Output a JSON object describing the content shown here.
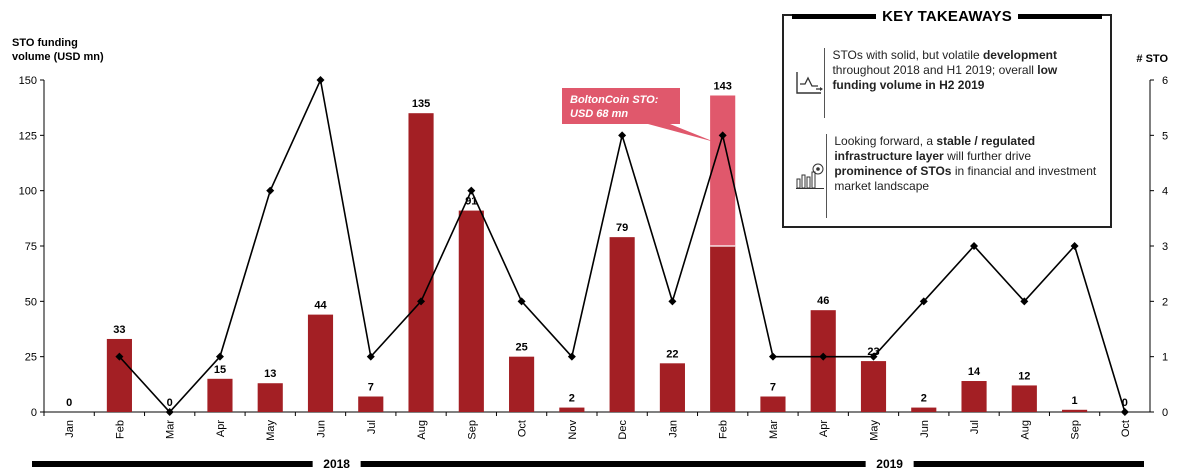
{
  "chart_data": {
    "type": "bar",
    "title": "",
    "y_left_label": [
      "STO funding",
      "volume (USD mn)"
    ],
    "y_right_label": "# STO",
    "y_left_ticks": [
      0,
      25,
      50,
      75,
      100,
      125,
      150
    ],
    "y_right_ticks": [
      0,
      1,
      2,
      3,
      4,
      5,
      6
    ],
    "ylim_left": [
      0,
      150
    ],
    "ylim_right": [
      0,
      6
    ],
    "categories": [
      "Jan",
      "Feb",
      "Mar",
      "Apr",
      "May",
      "Jun",
      "Jul",
      "Aug",
      "Sep",
      "Oct",
      "Nov",
      "Dec",
      "Jan",
      "Feb",
      "Mar",
      "Apr",
      "May",
      "Jun",
      "Jul",
      "Aug",
      "Sep",
      "Oct"
    ],
    "years": [
      {
        "label": "2018",
        "start_index": 0,
        "end_index": 11
      },
      {
        "label": "2019",
        "start_index": 12,
        "end_index": 21
      }
    ],
    "series": [
      {
        "kind": "bar",
        "axis": "left",
        "color": "#a31f24",
        "values": [
          0,
          33,
          0,
          15,
          13,
          44,
          7,
          135,
          91,
          25,
          2,
          79,
          22,
          75,
          7,
          46,
          23,
          2,
          14,
          12,
          1,
          0
        ]
      },
      {
        "kind": "bar-stack",
        "axis": "left",
        "color": "#e0586c",
        "values": [
          0,
          0,
          0,
          0,
          0,
          0,
          0,
          0,
          0,
          0,
          0,
          0,
          0,
          68,
          0,
          0,
          0,
          0,
          0,
          0,
          0,
          0
        ]
      },
      {
        "kind": "line",
        "axis": "right",
        "color": "#000000",
        "values": [
          null,
          1,
          0,
          1,
          4,
          6,
          1,
          2,
          4,
          2,
          1,
          5,
          2,
          5,
          1,
          1,
          1,
          2,
          3,
          2,
          3,
          0
        ]
      }
    ],
    "bar_labels": [
      "0",
      "33",
      "0",
      "15",
      "13",
      "44",
      "7",
      "135",
      "91",
      "25",
      "2",
      "79",
      "22",
      "143",
      "7",
      "46",
      "23",
      "2",
      "14",
      "12",
      "1",
      "0"
    ],
    "callout": {
      "text": [
        "BoltonCoin STO:",
        "USD 68 mn"
      ],
      "color": "#e0586c",
      "target_index": 13
    }
  },
  "takeaways": {
    "title": "KEY TAKEAWAYS",
    "items": [
      {
        "icon": "trend-chart-icon",
        "parts": [
          [
            "STOs with solid, but volatile",
            false
          ],
          [
            " development",
            true
          ],
          [
            " throughout 2018 and H1 2019; overall",
            false
          ],
          [
            " low funding volume in H2 2019",
            true
          ]
        ]
      },
      {
        "icon": "infrastructure-chart-icon",
        "parts": [
          [
            "Looking forward, a",
            false
          ],
          [
            " stable / regulated infrastructure layer",
            true
          ],
          [
            " will further drive",
            false
          ],
          [
            " prominence of STOs",
            true
          ],
          [
            " in financial and investment market landscape",
            false
          ]
        ]
      }
    ]
  }
}
